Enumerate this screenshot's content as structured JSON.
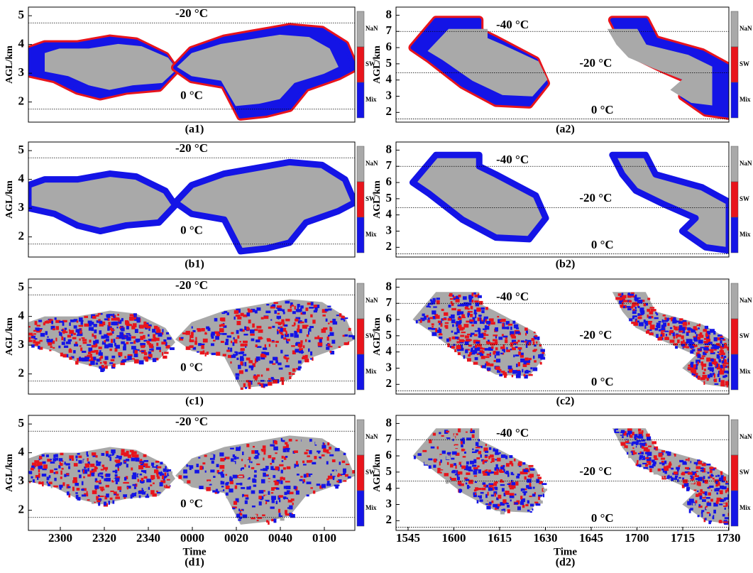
{
  "chart_data": [
    {
      "type": "phase",
      "caption": "(a1)",
      "ylabel": "AGL/km",
      "ylim": [
        1.3,
        5.3
      ],
      "yticks": [
        2,
        3,
        4,
        5
      ],
      "isotherms": [
        {
          "value": 4.75,
          "label": "-20 °C"
        },
        {
          "value": 1.75,
          "label": "0 °C"
        }
      ],
      "colorbar": [
        {
          "label": "NaN",
          "color": "#a9a9a9"
        },
        {
          "label": "SW",
          "color": "#e8141c"
        },
        {
          "label": "Mix",
          "color": "#1414e6"
        }
      ]
    },
    {
      "type": "phase",
      "caption": "(a2)",
      "ylabel": "AGL/km",
      "ylim": [
        1.4,
        8.5
      ],
      "yticks": [
        2,
        3,
        4,
        5,
        6,
        7,
        8
      ],
      "isotherms": [
        {
          "value": 7.0,
          "label": "-40 °C"
        },
        {
          "value": 4.45,
          "label": "-20 °C"
        },
        {
          "value": 1.6,
          "label": "0 °C"
        }
      ],
      "colorbar": [
        {
          "label": "NaN",
          "color": "#a9a9a9"
        },
        {
          "label": "SW",
          "color": "#e8141c"
        },
        {
          "label": "Mix",
          "color": "#1414e6"
        }
      ]
    },
    {
      "type": "phase",
      "caption": "(b1)",
      "ylabel": "AGL/km",
      "ylim": [
        1.3,
        5.3
      ],
      "yticks": [
        2,
        3,
        4,
        5
      ],
      "isotherms": [
        {
          "value": 4.75,
          "label": "-20 °C"
        },
        {
          "value": 1.75,
          "label": "0 °C"
        }
      ],
      "colorbar": [
        {
          "label": "NaN",
          "color": "#a9a9a9"
        },
        {
          "label": "SW",
          "color": "#e8141c"
        },
        {
          "label": "Mix",
          "color": "#1414e6"
        }
      ]
    },
    {
      "type": "phase",
      "caption": "(b2)",
      "ylabel": "AGL/km",
      "ylim": [
        1.4,
        8.5
      ],
      "yticks": [
        2,
        3,
        4,
        5,
        6,
        7,
        8
      ],
      "isotherms": [
        {
          "value": 7.0,
          "label": "-40 °C"
        },
        {
          "value": 4.45,
          "label": "-20 °C"
        },
        {
          "value": 1.6,
          "label": "0 °C"
        }
      ],
      "colorbar": [
        {
          "label": "NaN",
          "color": "#a9a9a9"
        },
        {
          "label": "SW",
          "color": "#e8141c"
        },
        {
          "label": "Mix",
          "color": "#1414e6"
        }
      ]
    },
    {
      "type": "phase",
      "caption": "(c1)",
      "ylabel": "AGL/km",
      "ylim": [
        1.3,
        5.3
      ],
      "yticks": [
        2,
        3,
        4,
        5
      ],
      "isotherms": [
        {
          "value": 4.75,
          "label": "-20 °C"
        },
        {
          "value": 1.75,
          "label": "0 °C"
        }
      ],
      "colorbar": [
        {
          "label": "NaN",
          "color": "#a9a9a9"
        },
        {
          "label": "SW",
          "color": "#e8141c"
        },
        {
          "label": "Mix",
          "color": "#1414e6"
        }
      ]
    },
    {
      "type": "phase",
      "caption": "(c2)",
      "ylabel": "AGL/km",
      "ylim": [
        1.4,
        8.5
      ],
      "yticks": [
        2,
        3,
        4,
        5,
        6,
        7,
        8
      ],
      "isotherms": [
        {
          "value": 7.0,
          "label": "-40 °C"
        },
        {
          "value": 4.45,
          "label": "-20 °C"
        },
        {
          "value": 1.6,
          "label": "0 °C"
        }
      ],
      "colorbar": [
        {
          "label": "NaN",
          "color": "#a9a9a9"
        },
        {
          "label": "SW",
          "color": "#e8141c"
        },
        {
          "label": "Mix",
          "color": "#1414e6"
        }
      ]
    },
    {
      "type": "phase",
      "caption": "(d1)",
      "ylabel": "AGL/km",
      "xlabel": "Time",
      "ylim": [
        1.3,
        5.3
      ],
      "yticks": [
        2,
        3,
        4,
        5
      ],
      "xticks": [
        "2300",
        "2320",
        "2340",
        "0000",
        "0020",
        "0040",
        "0100"
      ],
      "isotherms": [
        {
          "value": 4.75,
          "label": "-20 °C"
        },
        {
          "value": 1.75,
          "label": "0 °C"
        }
      ],
      "colorbar": [
        {
          "label": "NaN",
          "color": "#a9a9a9"
        },
        {
          "label": "SW",
          "color": "#e8141c"
        },
        {
          "label": "Mix",
          "color": "#1414e6"
        }
      ]
    },
    {
      "type": "phase",
      "caption": "(d2)",
      "ylabel": "AGL/km",
      "xlabel": "Time",
      "ylim": [
        1.4,
        8.5
      ],
      "yticks": [
        2,
        3,
        4,
        5,
        6,
        7,
        8
      ],
      "xticks": [
        "1545",
        "1600",
        "1615",
        "1630",
        "1645",
        "1700",
        "1715",
        "1730"
      ],
      "isotherms": [
        {
          "value": 7.0,
          "label": "-40 °C"
        },
        {
          "value": 4.45,
          "label": "-20 °C"
        },
        {
          "value": 1.6,
          "label": "0 °C"
        }
      ],
      "colorbar": [
        {
          "label": "NaN",
          "color": "#a9a9a9"
        },
        {
          "label": "SW",
          "color": "#e8141c"
        },
        {
          "label": "Mix",
          "color": "#1414e6"
        }
      ]
    }
  ]
}
